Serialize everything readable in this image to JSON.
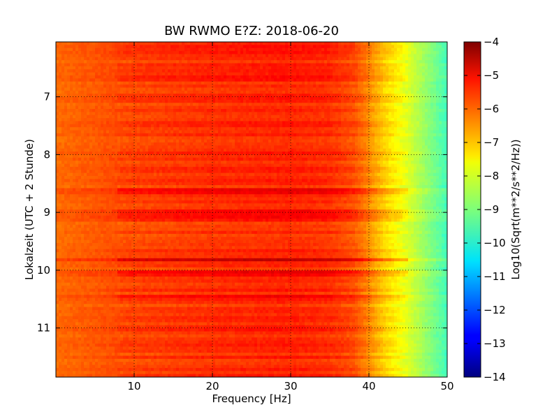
{
  "chart_data": {
    "type": "heatmap",
    "title": "BW RWMO E?Z: 2018-06-20",
    "xlabel": "Frequency [Hz]",
    "ylabel": "Lokalzeit (UTC + 2 Stunde)",
    "xlim": [
      0,
      50
    ],
    "ylim": [
      11.85,
      6.05
    ],
    "y_inverted": true,
    "x_ticks": [
      10,
      20,
      30,
      40,
      50
    ],
    "y_ticks": [
      7,
      8,
      9,
      10,
      11
    ],
    "grid": true,
    "colormap": "jet",
    "colorbar": {
      "label": "Log10(Sqrt(m**2/s**2/Hz))",
      "min": -14,
      "max": -4,
      "ticks": [
        -4,
        -5,
        -6,
        -7,
        -8,
        -9,
        -10,
        -11,
        -12,
        -13,
        -14
      ]
    },
    "spectrum_profile": {
      "frequency_hz": [
        0,
        5,
        10,
        15,
        20,
        25,
        30,
        35,
        38,
        40,
        42,
        44,
        46,
        48,
        50
      ],
      "log10_amplitude": [
        -6.3,
        -6.1,
        -5.9,
        -5.8,
        -5.7,
        -5.65,
        -5.6,
        -5.7,
        -6.0,
        -6.6,
        -7.3,
        -7.8,
        -8.4,
        -9.0,
        -9.6
      ]
    },
    "strong_bands": [
      {
        "time": 8.63,
        "log10_amplitude": -4.7
      },
      {
        "time": 9.0,
        "log10_amplitude": -5.0
      },
      {
        "time": 9.1,
        "log10_amplitude": -5.1
      },
      {
        "time": 9.82,
        "log10_amplitude": -4.7
      },
      {
        "time": 10.05,
        "log10_amplitude": -4.8
      },
      {
        "time": 6.68,
        "log10_amplitude": -5.2
      },
      {
        "time": 6.15,
        "log10_amplitude": -5.3
      },
      {
        "time": 10.45,
        "log10_amplitude": -5.2
      }
    ]
  }
}
